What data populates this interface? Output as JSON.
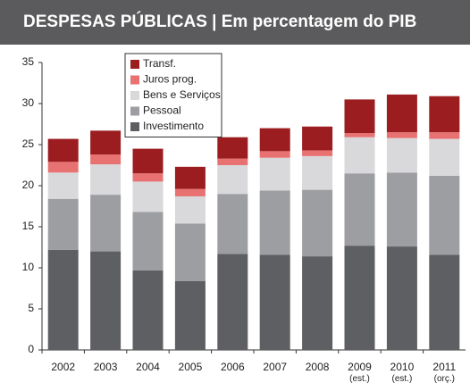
{
  "chart_data": {
    "type": "stacked_bar",
    "title": "DESPESAS PÚBLICAS | Em percentagem do PIB",
    "categories": [
      "2002",
      "2003",
      "2004",
      "2005",
      "2006",
      "2007",
      "2008",
      "2009 (est.)",
      "2010 (est.)",
      "2011 (orç.)"
    ],
    "series": [
      {
        "name": "Investimento",
        "color": "#5e5f62",
        "values": [
          12.2,
          12.0,
          9.7,
          8.4,
          11.7,
          11.6,
          11.4,
          12.7,
          12.6,
          11.6
        ]
      },
      {
        "name": "Pessoal",
        "color": "#9d9ea1",
        "values": [
          6.2,
          6.9,
          7.1,
          7.0,
          7.3,
          7.8,
          8.1,
          8.8,
          9.0,
          9.6
        ]
      },
      {
        "name": "Bens e Serviços",
        "color": "#d9d9db",
        "values": [
          3.2,
          3.7,
          3.7,
          3.3,
          3.5,
          4.0,
          4.1,
          4.4,
          4.2,
          4.5
        ]
      },
      {
        "name": "Juros prog.",
        "color": "#e87272",
        "values": [
          1.3,
          1.2,
          1.0,
          0.9,
          0.8,
          0.8,
          0.7,
          0.5,
          0.7,
          0.8
        ]
      },
      {
        "name": "Transf.",
        "color": "#9b1d20",
        "values": [
          2.8,
          2.9,
          3.0,
          2.7,
          2.6,
          2.8,
          2.9,
          4.1,
          4.6,
          4.4
        ]
      }
    ],
    "ylim": [
      0,
      35
    ],
    "yticks": [
      0,
      5,
      10,
      15,
      20,
      25,
      30,
      35
    ]
  }
}
